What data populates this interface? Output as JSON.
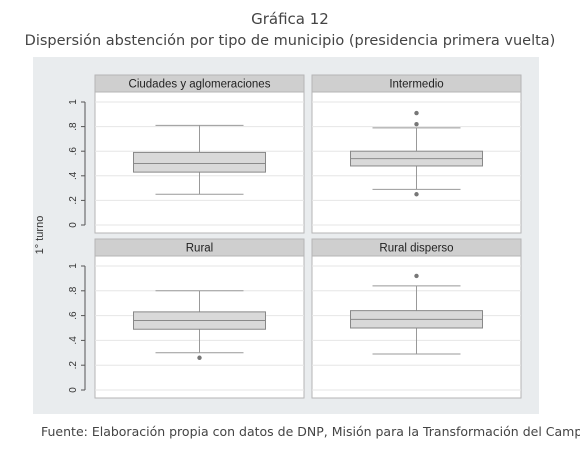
{
  "figure": {
    "title": "Gráfica 12",
    "subtitle": "Dispersión abstención por tipo de municipio (presidencia primera vuelta)",
    "source": "Fuente: Elaboración propia con datos de DNP, Misión para la Transformación del Campo."
  },
  "chart_data": {
    "type": "box",
    "ylabel": "1° turno",
    "ylim": [
      0,
      1
    ],
    "yticks": [
      0,
      0.2,
      0.4,
      0.6,
      0.8,
      1
    ],
    "ytick_labels": [
      "0",
      ".2",
      ".4",
      ".6",
      ".8",
      "1"
    ],
    "grid": true,
    "colors": {
      "box_fill": "#d9d9d9",
      "box_line": "#888888",
      "panel_header": "#cfcfcf",
      "outlier": "#777777",
      "background": "#e9ecee"
    },
    "panels": [
      {
        "name": "Ciudades y aglomeraciones",
        "whisker_low": 0.25,
        "q1": 0.43,
        "median": 0.5,
        "q3": 0.59,
        "whisker_high": 0.81,
        "outliers": []
      },
      {
        "name": "Intermedio",
        "whisker_low": 0.29,
        "q1": 0.48,
        "median": 0.54,
        "q3": 0.6,
        "whisker_high": 0.79,
        "outliers": [
          0.25,
          0.82,
          0.91
        ]
      },
      {
        "name": "Rural",
        "whisker_low": 0.3,
        "q1": 0.49,
        "median": 0.56,
        "q3": 0.63,
        "whisker_high": 0.8,
        "outliers": [
          0.26
        ]
      },
      {
        "name": "Rural disperso",
        "whisker_low": 0.29,
        "q1": 0.5,
        "median": 0.57,
        "q3": 0.64,
        "whisker_high": 0.84,
        "outliers": [
          0.92
        ]
      }
    ]
  }
}
